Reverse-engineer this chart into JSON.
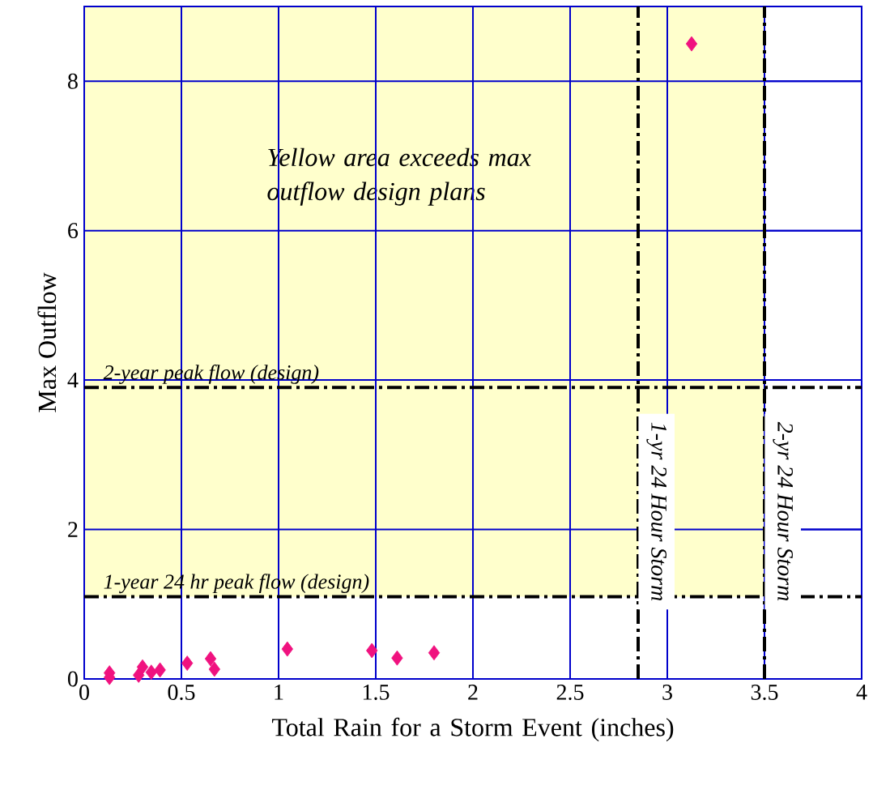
{
  "chart_data": {
    "type": "scatter",
    "xlabel": "Total Rain for a Storm Event (inches)",
    "ylabel": "Max Outflow",
    "x": [
      0.13,
      0.13,
      0.28,
      0.3,
      0.345,
      0.39,
      0.53,
      0.65,
      0.67,
      1.045,
      1.48,
      1.61,
      1.8,
      3.125
    ],
    "values": [
      0.08,
      0.02,
      0.05,
      0.16,
      0.09,
      0.12,
      0.21,
      0.27,
      0.13,
      0.4,
      0.38,
      0.28,
      0.35,
      8.5
    ],
    "color": "#f0127f",
    "marker": "diamond",
    "xlim": [
      0,
      4
    ],
    "ylim": [
      0,
      9
    ],
    "xticks": [
      0,
      0.5,
      1,
      1.5,
      2,
      2.5,
      3,
      3.5,
      4
    ],
    "yticks": [
      0,
      2,
      4,
      6,
      8
    ],
    "grid": true,
    "ref_lines": [
      {
        "axis": "y",
        "value": 3.9,
        "label": "2-year peak flow (design)",
        "color": "#000000",
        "line_style": "dashdot"
      },
      {
        "axis": "y",
        "value": 1.1,
        "label": "1-year 24 hr peak flow (design)",
        "color": "#000000",
        "line_style": "dashdot"
      },
      {
        "axis": "x",
        "value": 2.85,
        "label": "1-yr 24 Hour Storm",
        "color": "#000000",
        "line_style": "dashdot"
      },
      {
        "axis": "x",
        "value": 3.5,
        "label": "2-yr 24 Hour Storm",
        "color": "#000000",
        "line_style": "dashdot"
      }
    ],
    "bands": [
      {
        "axis": "y",
        "from": 1.1,
        "to": 9,
        "label": "Yellow area exceeds max outflow design plans",
        "color": "#ffffcc"
      }
    ]
  }
}
